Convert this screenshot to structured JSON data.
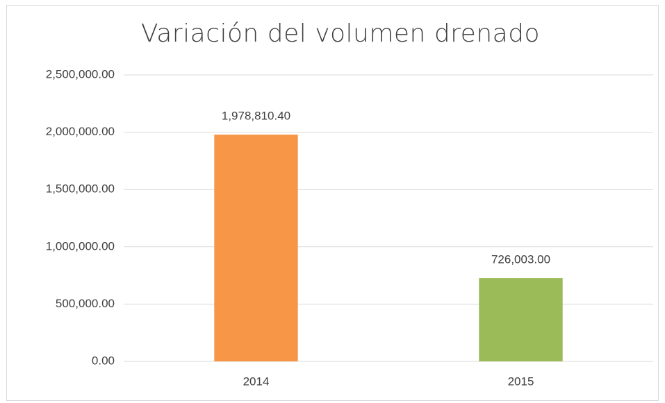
{
  "chart_data": {
    "type": "bar",
    "title": "Variación del volumen drenado",
    "categories": [
      "2014",
      "2015"
    ],
    "values": [
      1978810.4,
      726003
    ],
    "value_labels": [
      "1,978,810.40",
      "726,003.00"
    ],
    "colors": [
      "#f79646",
      "#9bbb59"
    ],
    "ylim": [
      0,
      2500000
    ],
    "yticks": [
      {
        "value": 0,
        "label": "0.00"
      },
      {
        "value": 500000,
        "label": "500,000.00"
      },
      {
        "value": 1000000,
        "label": "1,000,000.00"
      },
      {
        "value": 1500000,
        "label": "1,500,000.00"
      },
      {
        "value": 2000000,
        "label": "2,000,000.00"
      },
      {
        "value": 2500000,
        "label": "2,500,000.00"
      }
    ],
    "grid": true
  }
}
